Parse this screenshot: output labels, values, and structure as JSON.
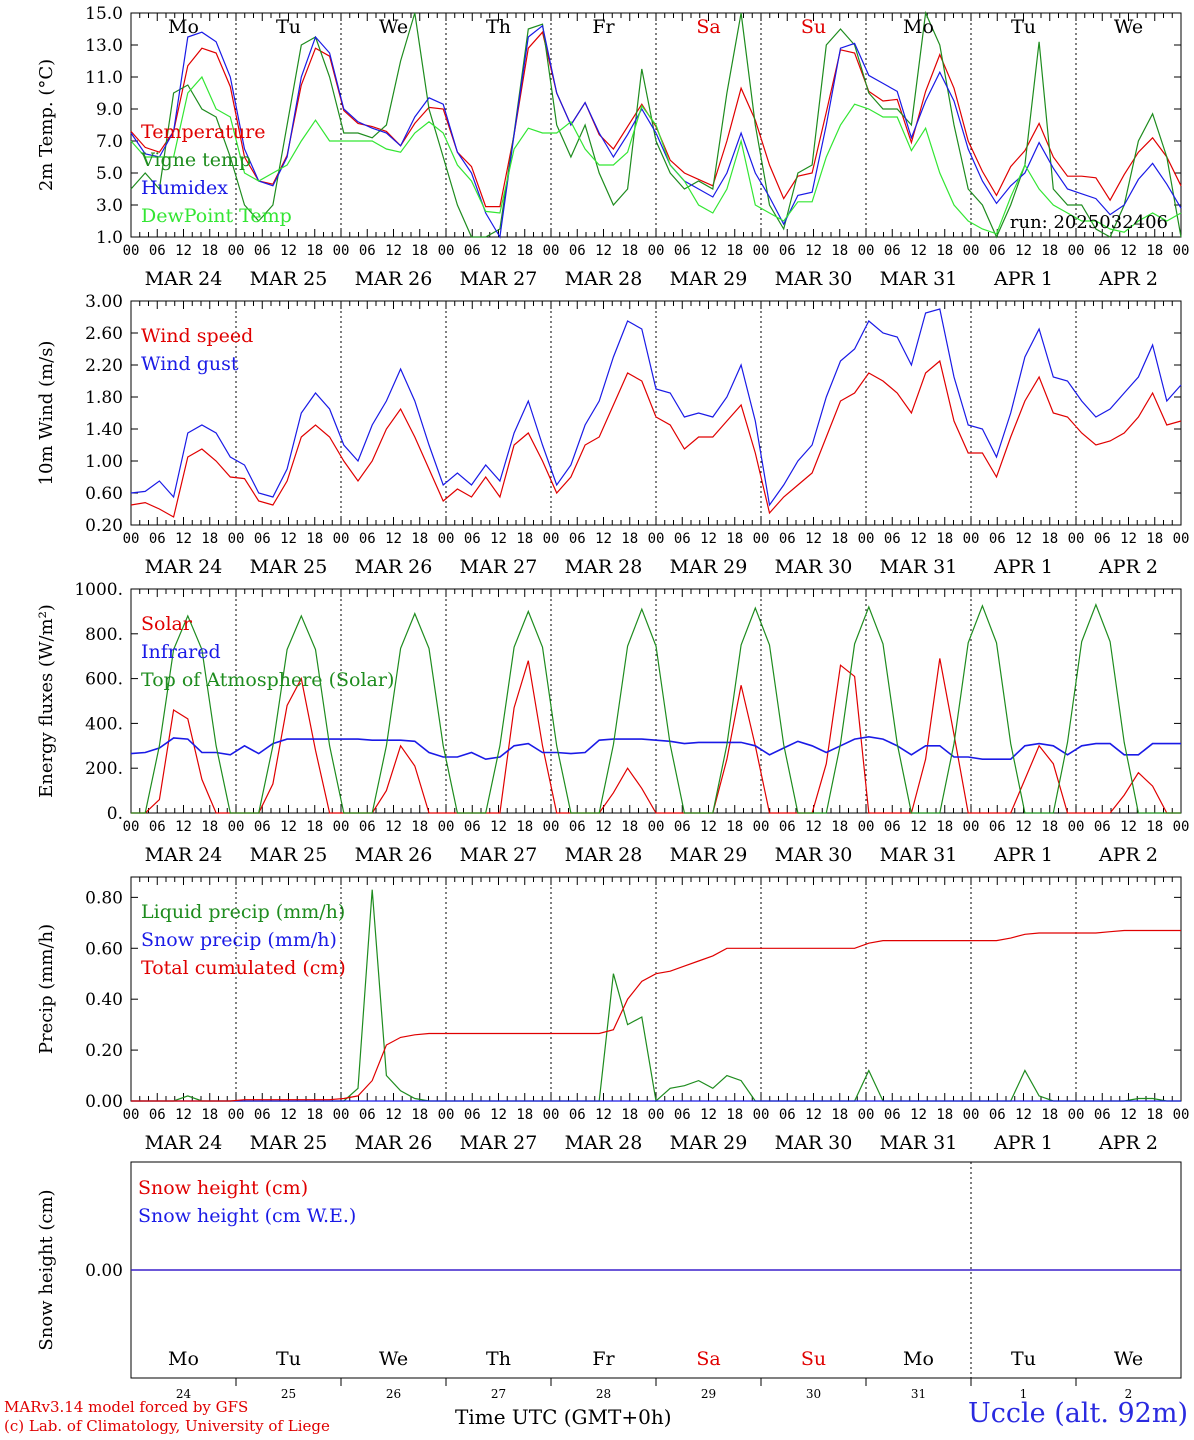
{
  "chart_data": [
    {
      "type": "line",
      "ylabel": "2m Temp. (°C)",
      "ylim": [
        1.0,
        15.0
      ],
      "yticks": [
        "1.0",
        "3.0",
        "5.0",
        "7.0",
        "9.0",
        "11.0",
        "13.0",
        "15.0"
      ],
      "annotation": "run: 2025032406",
      "legend": [
        "Temperature",
        "Vigne temp",
        "Humidex",
        "DewPoint Temp"
      ],
      "series": [
        {
          "name": "Temperature",
          "color": "#e00000",
          "values": [
            7.6,
            6.6,
            6.3,
            7.6,
            11.7,
            12.8,
            12.5,
            10.4,
            6.0,
            4.5,
            4.3,
            6.1,
            10.5,
            12.8,
            12.3,
            8.9,
            8.1,
            7.9,
            7.6,
            6.7,
            8.1,
            9.1,
            9.0,
            6.3,
            5.4,
            2.9,
            2.9,
            7.4,
            12.8,
            13.8,
            10.0,
            8.0,
            9.4,
            7.4,
            6.5,
            7.9,
            9.3,
            7.9,
            5.8,
            5.0,
            4.6,
            4.2,
            7.0,
            10.3,
            8.3,
            5.5,
            3.4,
            4.8,
            5.0,
            8.8,
            12.7,
            12.5,
            10.1,
            9.5,
            9.6,
            6.9,
            10.1,
            12.4,
            10.3,
            7.0,
            5.1,
            3.6,
            5.4,
            6.4,
            8.1,
            6.0,
            4.8,
            4.8,
            4.7,
            3.3,
            4.9,
            6.3,
            7.2,
            6.0,
            4.2
          ]
        },
        {
          "name": "Vigne temp",
          "color": "#1e8c1e",
          "values": [
            4.0,
            5.0,
            4.0,
            10.0,
            10.5,
            9.0,
            8.5,
            6.0,
            3.0,
            2.0,
            3.0,
            8.0,
            13.0,
            13.5,
            11.0,
            7.5,
            7.5,
            7.2,
            8.0,
            12.0,
            16.0,
            9.0,
            6.0,
            3.0,
            1.0,
            0.6,
            1.5,
            7.5,
            14.0,
            14.3,
            8.0,
            6.0,
            8.0,
            5.0,
            3.0,
            4.0,
            11.5,
            7.0,
            5.0,
            4.0,
            4.5,
            4.0,
            10.0,
            15.0,
            8.0,
            3.0,
            1.5,
            5.0,
            5.5,
            13.0,
            14.0,
            13.0,
            10.0,
            9.0,
            9.0,
            8.0,
            16.0,
            13.0,
            8.0,
            4.0,
            3.0,
            1.0,
            3.0,
            5.5,
            13.2,
            4.0,
            3.0,
            3.0,
            1.5,
            1.0,
            3.0,
            7.0,
            8.7,
            6.0,
            1.0
          ]
        },
        {
          "name": "Humidex",
          "color": "#1a1ae6",
          "values": [
            7.5,
            6.2,
            6.0,
            7.6,
            13.5,
            13.8,
            13.2,
            11.0,
            6.5,
            4.5,
            4.2,
            6.0,
            11.0,
            13.5,
            12.5,
            9.0,
            8.2,
            7.8,
            7.5,
            6.7,
            8.5,
            9.7,
            9.3,
            6.3,
            5.0,
            2.5,
            0.8,
            7.4,
            13.5,
            14.2,
            10.0,
            8.0,
            9.4,
            7.5,
            6.0,
            7.4,
            9.0,
            7.5,
            5.5,
            4.5,
            4.0,
            3.5,
            5.0,
            7.5,
            5.0,
            3.5,
            1.8,
            3.6,
            3.8,
            8.0,
            12.8,
            13.1,
            11.1,
            10.6,
            10.1,
            7.2,
            9.5,
            11.3,
            9.5,
            6.5,
            4.5,
            3.1,
            4.2,
            5.0,
            6.9,
            5.3,
            4.0,
            3.7,
            3.4,
            2.4,
            3.0,
            4.6,
            5.6,
            4.3,
            2.8
          ]
        },
        {
          "name": "DewPoint Temp",
          "color": "#33e633",
          "values": [
            7.0,
            6.0,
            6.0,
            6.0,
            10.0,
            11.0,
            9.0,
            8.5,
            5.0,
            4.5,
            5.0,
            5.5,
            7.0,
            8.3,
            7.0,
            7.0,
            7.0,
            7.0,
            6.5,
            6.3,
            7.5,
            8.2,
            7.5,
            5.5,
            4.5,
            2.6,
            2.5,
            6.5,
            7.8,
            7.5,
            7.5,
            8.2,
            6.5,
            5.5,
            5.5,
            6.3,
            9.2,
            8.0,
            5.5,
            4.5,
            3.0,
            2.5,
            4.0,
            7.0,
            3.0,
            2.5,
            2.0,
            3.2,
            3.2,
            6.0,
            8.0,
            9.3,
            9.0,
            8.5,
            8.5,
            6.4,
            7.8,
            5.0,
            3.0,
            2.0,
            1.5,
            1.2,
            3.5,
            5.5,
            4.0,
            3.0,
            2.5,
            2.0,
            2.0,
            1.5,
            1.3,
            2.0,
            2.5,
            2.0,
            2.5
          ]
        }
      ]
    },
    {
      "type": "line",
      "ylabel": "10m Wind (m/s)",
      "ylim": [
        0.2,
        3.0
      ],
      "yticks": [
        "0.20",
        "0.60",
        "1.00",
        "1.40",
        "1.80",
        "2.20",
        "2.60",
        "3.00"
      ],
      "legend": [
        "Wind speed",
        "Wind gust"
      ],
      "series": [
        {
          "name": "Wind speed",
          "color": "#e00000",
          "values": [
            0.45,
            0.48,
            0.4,
            0.3,
            1.05,
            1.15,
            1.0,
            0.8,
            0.78,
            0.5,
            0.45,
            0.75,
            1.3,
            1.45,
            1.3,
            1.0,
            0.75,
            1.0,
            1.4,
            1.65,
            1.3,
            0.9,
            0.5,
            0.65,
            0.55,
            0.8,
            0.55,
            1.2,
            1.35,
            1.0,
            0.6,
            0.8,
            1.2,
            1.3,
            1.7,
            2.1,
            2.0,
            1.55,
            1.45,
            1.15,
            1.3,
            1.3,
            1.5,
            1.7,
            1.1,
            0.35,
            0.55,
            0.7,
            0.85,
            1.3,
            1.75,
            1.85,
            2.1,
            2.0,
            1.85,
            1.6,
            2.1,
            2.25,
            1.5,
            1.1,
            1.1,
            0.8,
            1.3,
            1.75,
            2.05,
            1.6,
            1.55,
            1.35,
            1.2,
            1.25,
            1.35,
            1.55,
            1.85,
            1.45,
            1.5
          ]
        },
        {
          "name": "Wind gust",
          "color": "#1a1ae6",
          "values": [
            0.6,
            0.62,
            0.75,
            0.55,
            1.35,
            1.45,
            1.35,
            1.05,
            0.95,
            0.6,
            0.55,
            0.9,
            1.6,
            1.85,
            1.65,
            1.2,
            1.0,
            1.45,
            1.75,
            2.15,
            1.75,
            1.2,
            0.7,
            0.85,
            0.7,
            0.95,
            0.75,
            1.35,
            1.75,
            1.2,
            0.7,
            0.95,
            1.45,
            1.75,
            2.3,
            2.75,
            2.65,
            1.9,
            1.85,
            1.55,
            1.6,
            1.55,
            1.8,
            2.2,
            1.5,
            0.45,
            0.7,
            1.0,
            1.2,
            1.8,
            2.25,
            2.4,
            2.75,
            2.6,
            2.55,
            2.2,
            2.85,
            2.9,
            2.05,
            1.45,
            1.4,
            1.05,
            1.6,
            2.3,
            2.65,
            2.05,
            2.0,
            1.75,
            1.55,
            1.65,
            1.85,
            2.05,
            2.45,
            1.75,
            1.95
          ]
        }
      ]
    },
    {
      "type": "line",
      "ylabel": "Energy fluxes (W/m²)",
      "ylim": [
        0,
        1000
      ],
      "yticks": [
        "0.",
        "200.",
        "400.",
        "600.",
        "800.",
        "1000."
      ],
      "legend": [
        "Solar",
        "Infrared",
        "Top of Atmosphere (Solar)"
      ],
      "series": [
        {
          "name": "Solar",
          "color": "#e00000",
          "values": [
            0,
            0,
            60,
            460,
            420,
            150,
            0,
            0,
            0,
            0,
            130,
            480,
            600,
            280,
            0,
            0,
            0,
            0,
            100,
            300,
            210,
            0,
            0,
            0,
            0,
            0,
            0,
            470,
            680,
            300,
            0,
            0,
            0,
            0,
            90,
            200,
            110,
            0,
            0,
            0,
            0,
            0,
            240,
            570,
            300,
            0,
            0,
            0,
            0,
            220,
            660,
            610,
            0,
            0,
            0,
            0,
            240,
            690,
            350,
            0,
            0,
            0,
            0,
            150,
            300,
            220,
            0,
            0,
            0,
            0,
            80,
            180,
            120,
            0,
            0
          ]
        },
        {
          "name": "Infrared",
          "color": "#1a1ae6",
          "values": [
            265,
            270,
            290,
            335,
            330,
            270,
            270,
            260,
            300,
            265,
            310,
            330,
            330,
            330,
            330,
            330,
            330,
            325,
            325,
            325,
            320,
            270,
            250,
            250,
            270,
            240,
            250,
            300,
            310,
            270,
            270,
            265,
            270,
            325,
            330,
            330,
            330,
            325,
            320,
            310,
            315,
            315,
            315,
            315,
            300,
            260,
            290,
            320,
            300,
            270,
            300,
            330,
            340,
            330,
            300,
            260,
            300,
            300,
            250,
            250,
            240,
            240,
            240,
            300,
            310,
            300,
            260,
            300,
            310,
            310,
            260,
            260,
            310,
            310,
            310
          ]
        },
        {
          "name": "Top of Atmosphere (Solar)",
          "color": "#1e8c1e",
          "values": [
            0,
            0,
            300,
            730,
            880,
            730,
            300,
            0,
            0,
            0,
            300,
            730,
            880,
            730,
            300,
            0,
            0,
            0,
            300,
            735,
            890,
            735,
            300,
            0,
            0,
            0,
            300,
            740,
            900,
            740,
            300,
            0,
            0,
            0,
            305,
            745,
            910,
            745,
            305,
            0,
            0,
            0,
            305,
            750,
            915,
            750,
            305,
            0,
            0,
            0,
            310,
            755,
            920,
            755,
            310,
            0,
            0,
            0,
            310,
            760,
            925,
            760,
            310,
            0,
            0,
            0,
            315,
            765,
            930,
            765,
            315,
            0,
            0,
            0,
            0
          ]
        }
      ]
    },
    {
      "type": "line",
      "ylabel": "Precip (mm/h)",
      "ylim": [
        0.0,
        0.88
      ],
      "yticks": [
        "0.00",
        "0.20",
        "0.40",
        "0.60",
        "0.80"
      ],
      "legend": [
        "Liquid precip (mm/h)",
        "Snow precip (mm/h)",
        "Total cumulated (cm)"
      ],
      "series": [
        {
          "name": "Liquid precip (mm/h)",
          "color": "#1e8c1e",
          "values": [
            0,
            0,
            0,
            0,
            0.02,
            0,
            0,
            0,
            0,
            0,
            0,
            0,
            0,
            0,
            0,
            0,
            0.05,
            0.83,
            0.1,
            0.04,
            0.01,
            0,
            0,
            0,
            0,
            0,
            0,
            0,
            0,
            0,
            0,
            0,
            0,
            0,
            0.5,
            0.3,
            0.33,
            0,
            0.05,
            0.06,
            0.08,
            0.05,
            0.1,
            0.08,
            0,
            0,
            0,
            0,
            0,
            0,
            0,
            0,
            0.12,
            0,
            0,
            0,
            0,
            0,
            0,
            0,
            0,
            0,
            0,
            0.12,
            0.02,
            0,
            0,
            0,
            0,
            0,
            0,
            0.01,
            0.01,
            0,
            0
          ]
        },
        {
          "name": "Snow precip (mm/h)",
          "color": "#1a1ae6",
          "values": [
            0,
            0,
            0,
            0,
            0,
            0,
            0,
            0,
            0,
            0,
            0,
            0,
            0,
            0,
            0,
            0,
            0,
            0,
            0,
            0,
            0,
            0,
            0,
            0,
            0,
            0,
            0,
            0,
            0,
            0,
            0,
            0,
            0,
            0,
            0,
            0,
            0,
            0,
            0,
            0,
            0,
            0,
            0,
            0,
            0,
            0,
            0,
            0,
            0,
            0,
            0,
            0,
            0,
            0,
            0,
            0,
            0,
            0,
            0,
            0,
            0,
            0,
            0,
            0,
            0,
            0,
            0,
            0,
            0,
            0,
            0,
            0,
            0,
            0,
            0
          ]
        },
        {
          "name": "Total cumulated (cm)",
          "color": "#e00000",
          "values": [
            0.0,
            0.0,
            0.0,
            0.0,
            0.0,
            0.0,
            0.0,
            0.0,
            0.005,
            0.005,
            0.005,
            0.005,
            0.005,
            0.005,
            0.005,
            0.01,
            0.02,
            0.08,
            0.22,
            0.25,
            0.26,
            0.265,
            0.265,
            0.265,
            0.265,
            0.265,
            0.265,
            0.265,
            0.265,
            0.265,
            0.265,
            0.265,
            0.265,
            0.265,
            0.28,
            0.4,
            0.47,
            0.5,
            0.51,
            0.53,
            0.55,
            0.57,
            0.6,
            0.6,
            0.6,
            0.6,
            0.6,
            0.6,
            0.6,
            0.6,
            0.6,
            0.6,
            0.62,
            0.63,
            0.63,
            0.63,
            0.63,
            0.63,
            0.63,
            0.63,
            0.63,
            0.63,
            0.64,
            0.655,
            0.66,
            0.66,
            0.66,
            0.66,
            0.66,
            0.665,
            0.67,
            0.67,
            0.67,
            0.67,
            0.67
          ]
        }
      ]
    },
    {
      "type": "line",
      "ylabel": "Snow height (cm)",
      "yticks": [
        "0.00"
      ],
      "legend": [
        "Snow height (cm)",
        "Snow height (cm W.E.)"
      ],
      "series": [
        {
          "name": "Snow height (cm)",
          "color": "#e00000",
          "values": [
            0,
            0
          ]
        },
        {
          "name": "Snow height (cm W.E.)",
          "color": "#1a1ae6",
          "values": [
            0,
            0
          ]
        }
      ]
    }
  ],
  "time_axis": {
    "hour_ticks": [
      "00",
      "06",
      "12",
      "18"
    ],
    "dates": [
      "MAR 24",
      "MAR 25",
      "MAR 26",
      "MAR 27",
      "MAR 28",
      "MAR 29",
      "MAR 30",
      "MAR 31",
      "APR  1",
      "APR  2"
    ],
    "weekdays": [
      "Mo",
      "Tu",
      "We",
      "Th",
      "Fr",
      "Sa",
      "Su",
      "Mo",
      "Tu",
      "We"
    ],
    "weekday_colors": [
      "#000000",
      "#000000",
      "#000000",
      "#000000",
      "#000000",
      "#e00000",
      "#e00000",
      "#000000",
      "#000000",
      "#000000"
    ],
    "day_numbers": [
      "24",
      "25",
      "26",
      "27",
      "28",
      "29",
      "30",
      "31",
      "1",
      "2"
    ]
  },
  "footer": {
    "model_line1": "MARv3.14 model forced by GFS",
    "model_line2": "(c) Lab. of Climatology, University of Liege",
    "xlabel": "Time UTC (GMT+0h)",
    "station": "Uccle (alt. 92m)"
  }
}
